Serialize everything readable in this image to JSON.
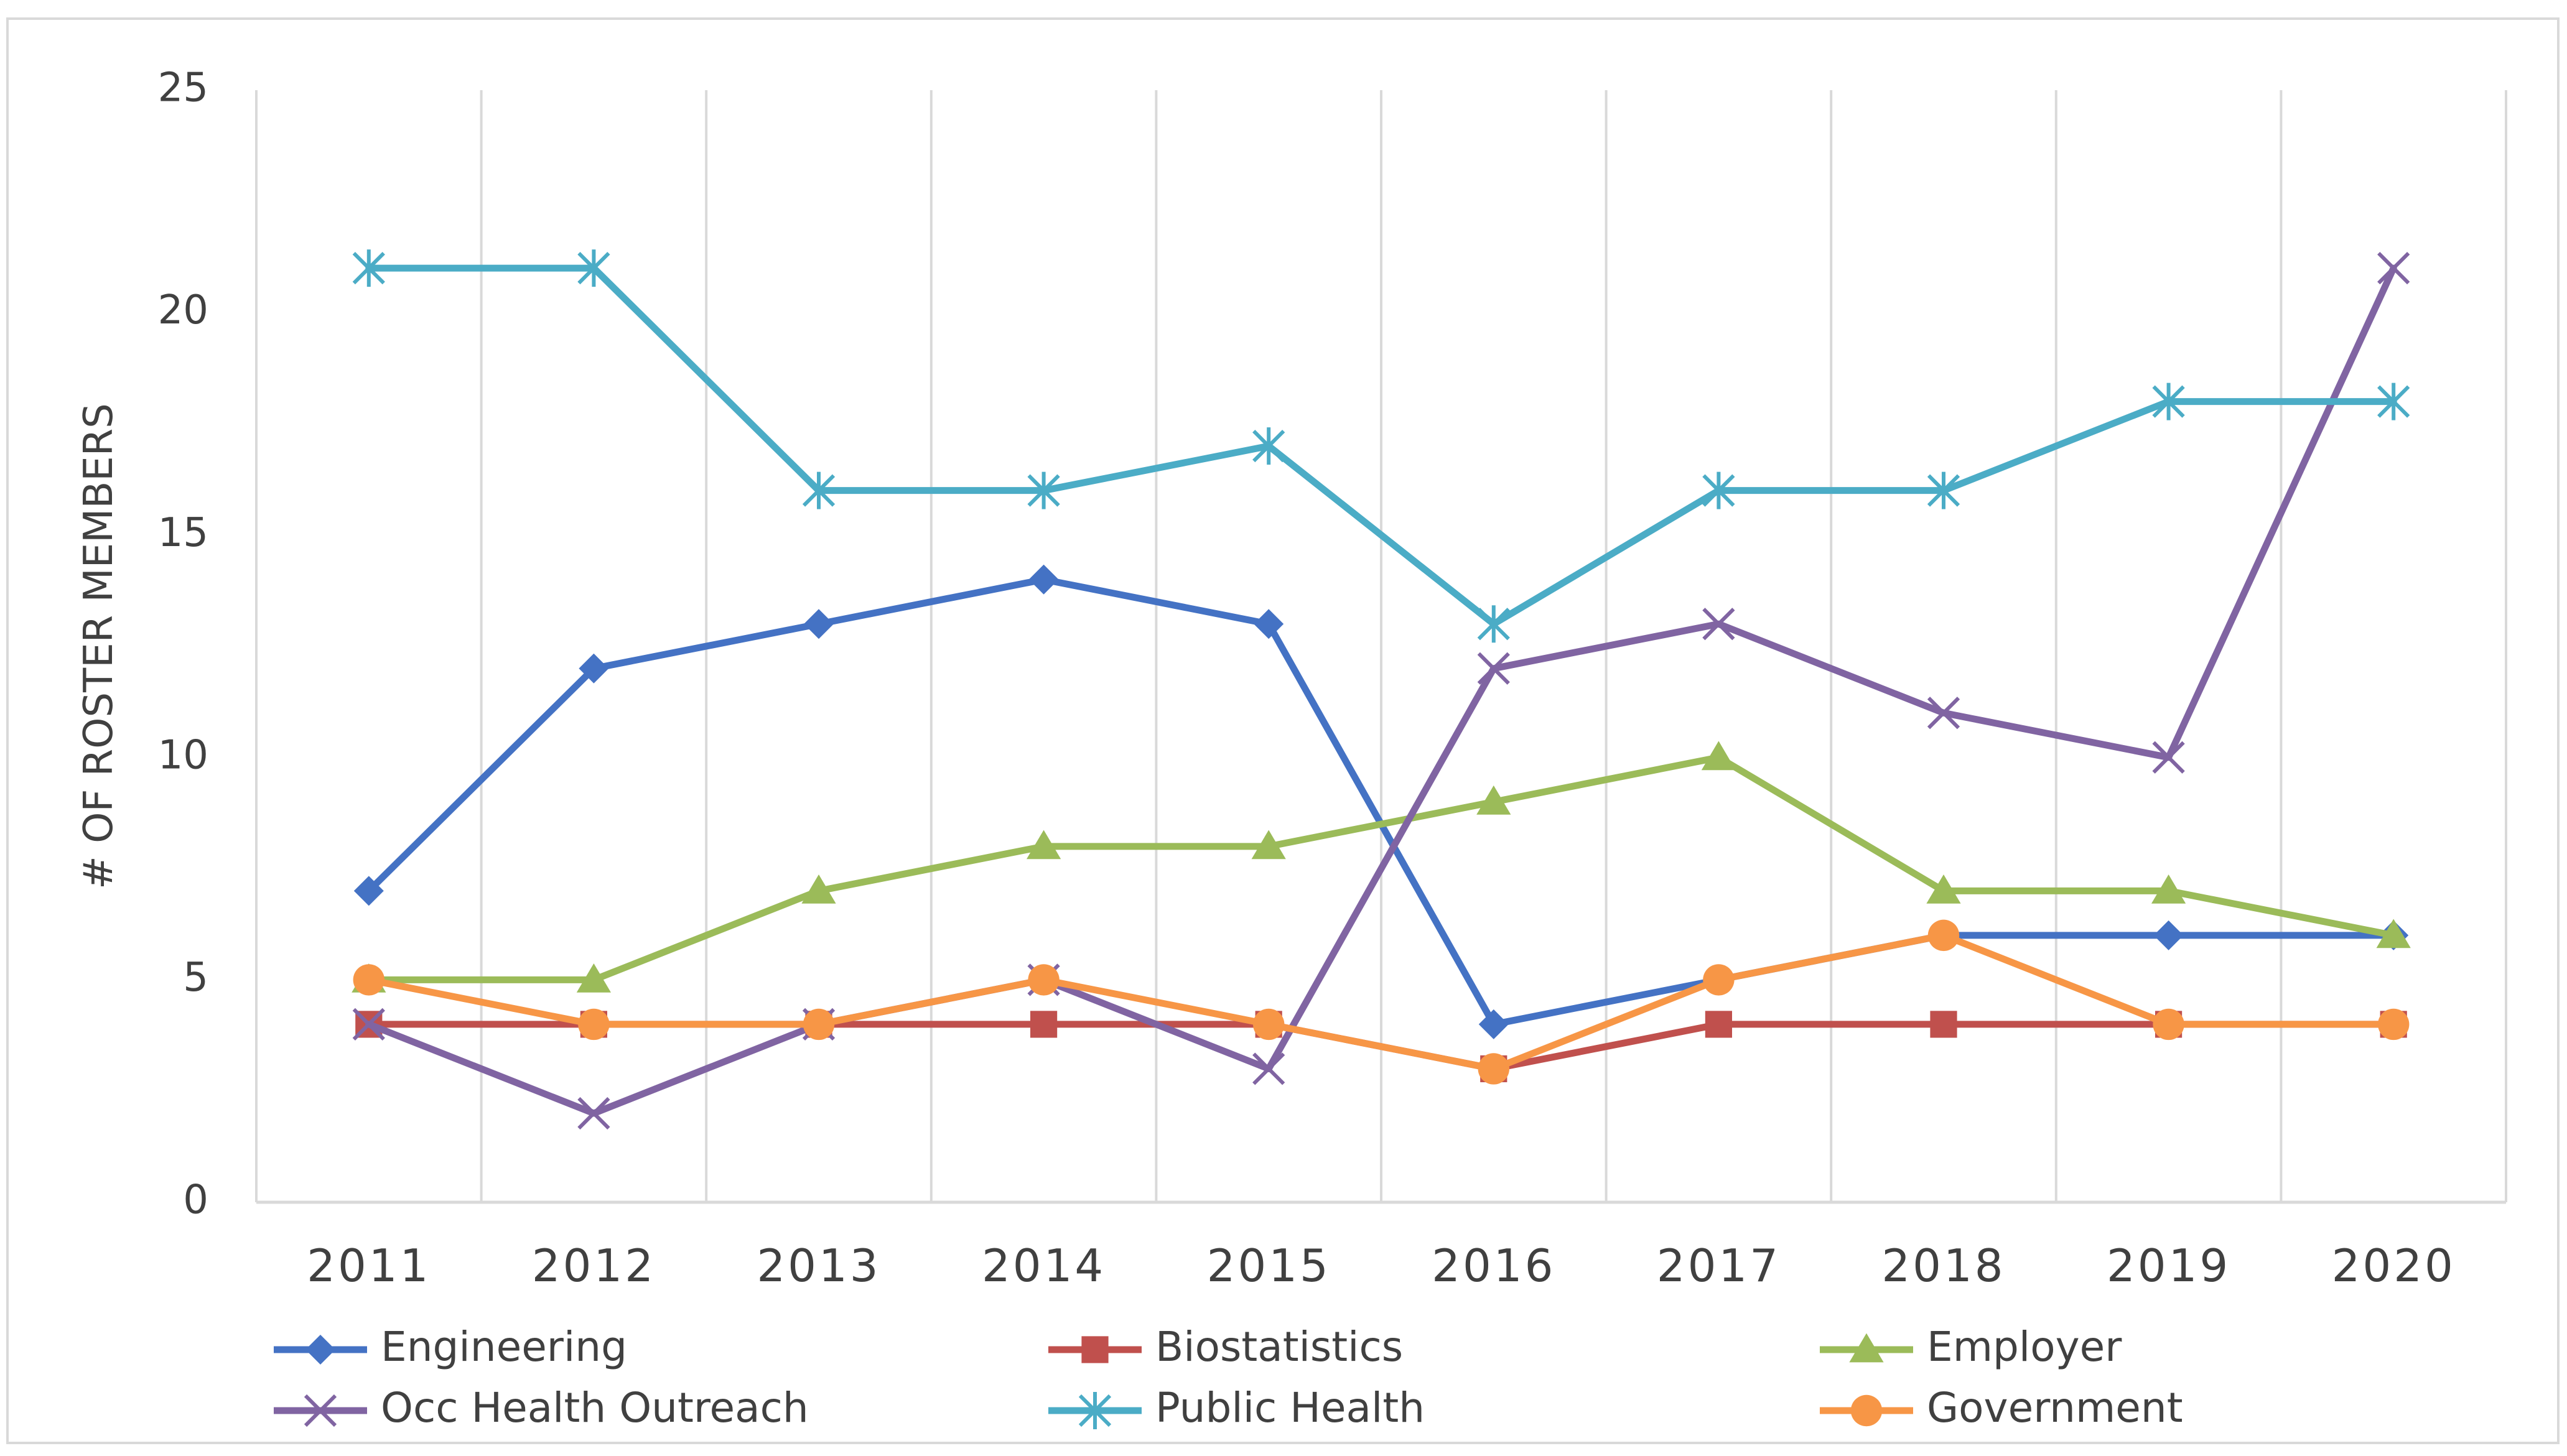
{
  "chart_data": {
    "type": "line",
    "title": "",
    "xlabel": "",
    "ylabel": "# OF ROSTER MEMBERS",
    "ylim": [
      0,
      25
    ],
    "yticks": [
      0,
      5,
      10,
      15,
      20,
      25
    ],
    "grid": "vertical",
    "legend_position": "bottom",
    "x": [
      "2011",
      "2012",
      "2013",
      "2014",
      "2015",
      "2016",
      "2017",
      "2018",
      "2019",
      "2020"
    ],
    "series": [
      {
        "name": "Engineering",
        "color": "#4472C4",
        "marker": "diamond",
        "values": [
          7,
          12,
          13,
          14,
          13,
          4,
          5,
          6,
          6,
          6
        ]
      },
      {
        "name": "Biostatistics",
        "color": "#C0504D",
        "marker": "square",
        "values": [
          4,
          4,
          4,
          4,
          4,
          3,
          4,
          4,
          4,
          4
        ]
      },
      {
        "name": "Employer",
        "color": "#9BBB59",
        "marker": "triangle",
        "values": [
          5,
          5,
          7,
          8,
          8,
          9,
          10,
          7,
          7,
          6
        ]
      },
      {
        "name": "Occ Health Outreach",
        "color": "#8064A2",
        "marker": "x",
        "values": [
          4,
          2,
          4,
          5,
          3,
          12,
          13,
          11,
          10,
          21
        ]
      },
      {
        "name": "Public Health",
        "color": "#4BACC6",
        "marker": "star",
        "values": [
          21,
          21,
          16,
          16,
          17,
          13,
          16,
          16,
          18,
          18
        ]
      },
      {
        "name": "Government",
        "color": "#F79646",
        "marker": "circle",
        "values": [
          5,
          4,
          4,
          5,
          4,
          3,
          5,
          6,
          4,
          4
        ]
      }
    ]
  }
}
